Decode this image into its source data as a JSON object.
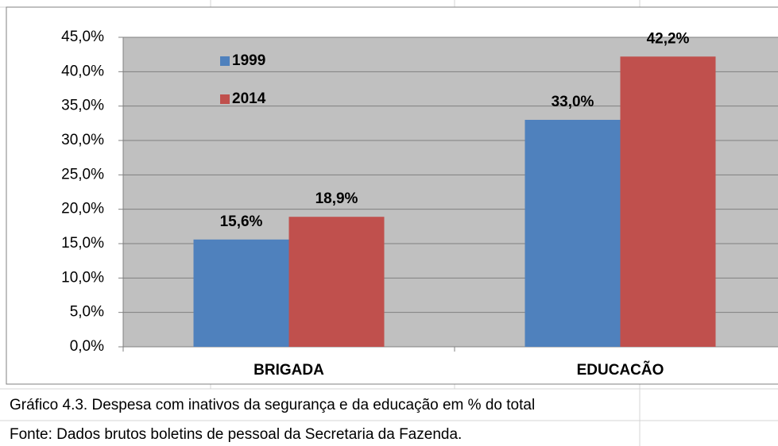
{
  "chart_data": {
    "type": "bar",
    "categories": [
      "BRIGADA",
      "EDUCACÃO"
    ],
    "series": [
      {
        "name": "1999",
        "color": "#4f81bd",
        "values": [
          15.6,
          33.0
        ],
        "value_labels": [
          "15,6%",
          "33,0%"
        ]
      },
      {
        "name": "2014",
        "color": "#c0504d",
        "values": [
          18.9,
          42.2
        ],
        "value_labels": [
          "18,9%",
          "42,2%"
        ]
      }
    ],
    "ylim": [
      0,
      45
    ],
    "yticks": [
      {
        "value": 0,
        "label": "0,0%"
      },
      {
        "value": 5,
        "label": "5,0%"
      },
      {
        "value": 10,
        "label": "10,0%"
      },
      {
        "value": 15,
        "label": "15,0%"
      },
      {
        "value": 20,
        "label": "20,0%"
      },
      {
        "value": 25,
        "label": "25,0%"
      },
      {
        "value": 30,
        "label": "30,0%"
      },
      {
        "value": 35,
        "label": "35,0%"
      },
      {
        "value": 40,
        "label": "40,0%"
      },
      {
        "value": 45,
        "label": "45,0%"
      }
    ],
    "grid": true,
    "legend": "upper left",
    "plot_background": "#c0c0c0",
    "caption": "Gráfico 4.3. Despesa com inativos da segurança e da educação em % do total",
    "source": "Fonte: Dados brutos boletins de pessoal da Secretaria da Fazenda."
  }
}
